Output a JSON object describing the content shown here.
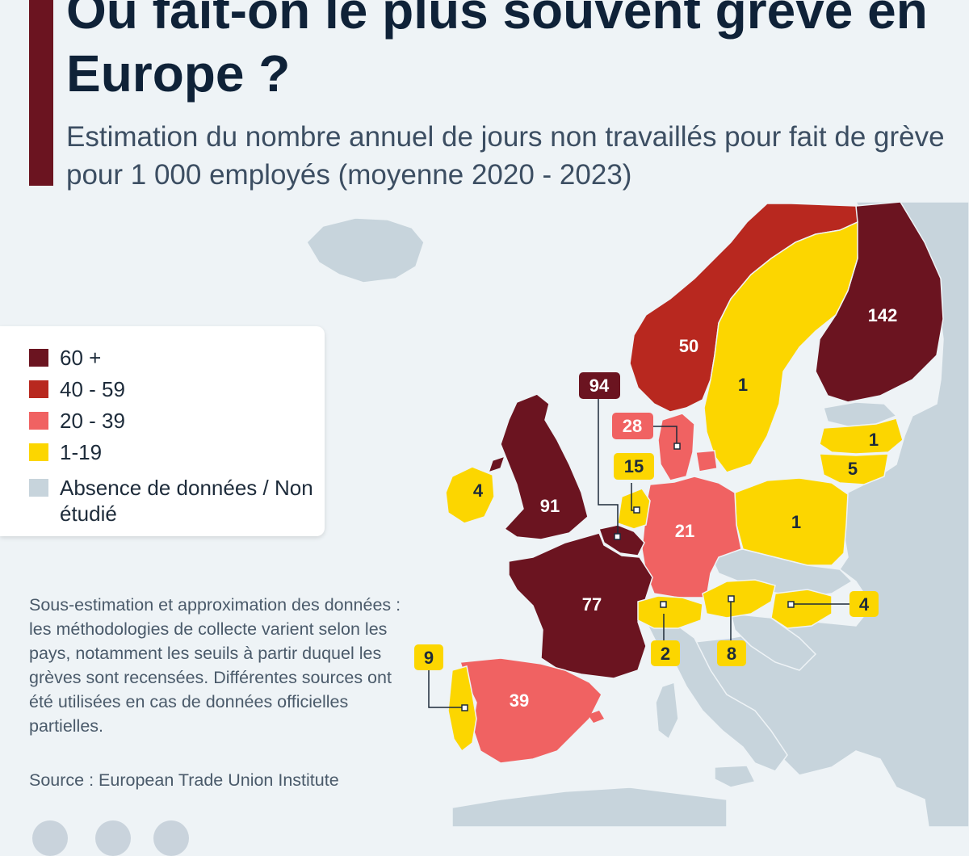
{
  "header": {
    "title": "Où fait-on le plus souvent grève en Europe ?",
    "subtitle": "Estimation du nombre annuel de jours non travaillés pour fait de grève pour 1 000 employés (moyenne 2020 - 2023)"
  },
  "colors": {
    "accent": "#6b1420",
    "cat_60_plus": "#6b1420",
    "cat_40_59": "#b8281f",
    "cat_20_39": "#f06262",
    "cat_1_19": "#fcd600",
    "no_data": "#c7d4dc",
    "sea": "#eef3f6"
  },
  "legend": {
    "items": [
      {
        "label": "60 +",
        "color": "#6b1420"
      },
      {
        "label": "40 - 59",
        "color": "#b8281f"
      },
      {
        "label": "20 - 39",
        "color": "#f06262"
      },
      {
        "label": "1-19",
        "color": "#fcd600"
      },
      {
        "label": "Absence de données / Non étudié",
        "color": "#c7d4dc"
      }
    ]
  },
  "map_values": {
    "finland": "142",
    "belgium": "94",
    "united_kingdom": "91",
    "france": "77",
    "norway": "50",
    "spain": "39",
    "denmark": "28",
    "germany": "21",
    "netherlands": "15",
    "portugal": "9",
    "austria": "8",
    "lithuania": "5",
    "ireland": "4",
    "hungary": "4",
    "switzerland": "2",
    "sweden": "1",
    "latvia": "1",
    "poland": "1"
  },
  "note": "Sous-estimation et approximation des données : les méthodologies de collecte varient selon les pays, notamment les seuils à partir duquel les grèves sont recensées. Différentes sources ont été utilisées en cas de données officielles partielles.",
  "source": "Source : European Trade Union Institute"
}
